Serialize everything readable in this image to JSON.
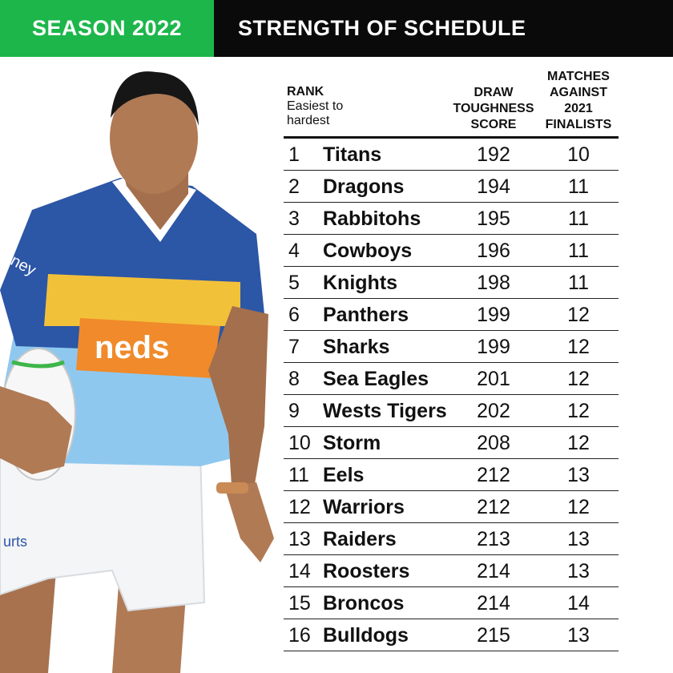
{
  "banner": {
    "season": "SEASON 2022",
    "title": "STRENGTH OF SCHEDULE"
  },
  "colors": {
    "green": "#1db64b",
    "black": "#0a0a0a",
    "jersey_blue": "#2c56a6",
    "jersey_sky": "#8fc8ef",
    "jersey_yellow": "#f2c13a",
    "jersey_orange": "#f08a2a"
  },
  "photo": {
    "jersey_sponsor": "neds",
    "shorts_text": "urts",
    "sleeve_text": "oney"
  },
  "table": {
    "col_rank": "RANK",
    "col_rank_sub1": "Easiest to",
    "col_rank_sub2": "hardest",
    "col_score": [
      "DRAW",
      "TOUGHNESS",
      "SCORE"
    ],
    "col_matches": [
      "MATCHES",
      "AGAINST",
      "2021",
      "FINALISTS"
    ],
    "rows": [
      {
        "rank": "1",
        "team": "Titans",
        "score": "192",
        "matches": "10"
      },
      {
        "rank": "2",
        "team": "Dragons",
        "score": "194",
        "matches": "11"
      },
      {
        "rank": "3",
        "team": "Rabbitohs",
        "score": "195",
        "matches": "11"
      },
      {
        "rank": "4",
        "team": "Cowboys",
        "score": "196",
        "matches": "11"
      },
      {
        "rank": "5",
        "team": "Knights",
        "score": "198",
        "matches": "11"
      },
      {
        "rank": "6",
        "team": "Panthers",
        "score": "199",
        "matches": "12"
      },
      {
        "rank": "7",
        "team": "Sharks",
        "score": "199",
        "matches": "12"
      },
      {
        "rank": "8",
        "team": "Sea Eagles",
        "score": "201",
        "matches": "12"
      },
      {
        "rank": "9",
        "team": "Wests Tigers",
        "score": "202",
        "matches": "12"
      },
      {
        "rank": "10",
        "team": "Storm",
        "score": "208",
        "matches": "12"
      },
      {
        "rank": "11",
        "team": "Eels",
        "score": "212",
        "matches": "13"
      },
      {
        "rank": "12",
        "team": "Warriors",
        "score": "212",
        "matches": "12"
      },
      {
        "rank": "13",
        "team": "Raiders",
        "score": "213",
        "matches": "13"
      },
      {
        "rank": "14",
        "team": "Roosters",
        "score": "214",
        "matches": "13"
      },
      {
        "rank": "15",
        "team": "Broncos",
        "score": "214",
        "matches": "14"
      },
      {
        "rank": "16",
        "team": "Bulldogs",
        "score": "215",
        "matches": "13"
      }
    ]
  }
}
